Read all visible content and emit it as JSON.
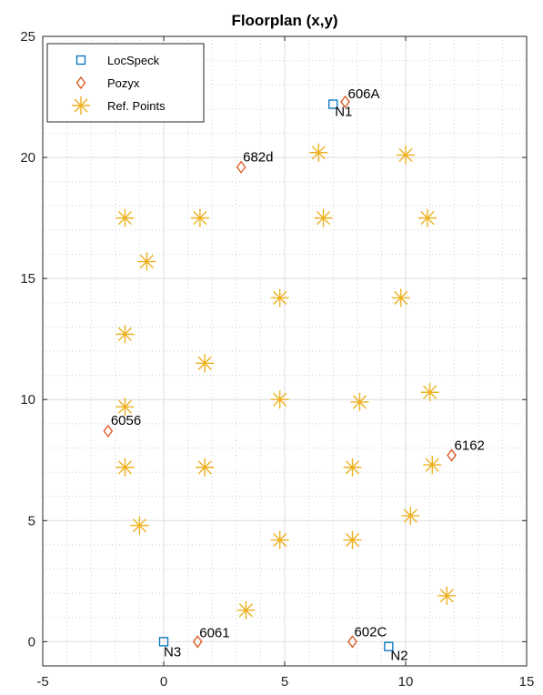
{
  "chart_data": {
    "type": "scatter",
    "title": "Floorplan (x,y)",
    "xlabel": "",
    "ylabel": "",
    "xlim": [
      -5,
      15
    ],
    "ylim": [
      -1,
      25
    ],
    "xticks": [
      -5,
      0,
      5,
      10,
      15
    ],
    "yticks": [
      0,
      5,
      10,
      15,
      20,
      25
    ],
    "grid": true,
    "minor_grid": true,
    "legend_position": "top-left",
    "series": [
      {
        "name": "LocSpeck",
        "marker": "square",
        "color": "#0072BD",
        "points": [
          {
            "x": 7.0,
            "y": 22.2,
            "label": "N1"
          },
          {
            "x": 9.3,
            "y": -0.2,
            "label": "N2"
          },
          {
            "x": 0.0,
            "y": 0.0,
            "label": "N3"
          }
        ]
      },
      {
        "name": "Pozyx",
        "marker": "diamond",
        "color": "#D95319",
        "points": [
          {
            "x": 7.5,
            "y": 22.3,
            "label": "606A"
          },
          {
            "x": 3.2,
            "y": 19.6,
            "label": "682d"
          },
          {
            "x": -2.3,
            "y": 8.7,
            "label": "6056"
          },
          {
            "x": 11.9,
            "y": 7.7,
            "label": "6162"
          },
          {
            "x": 1.4,
            "y": 0.0,
            "label": "6061"
          },
          {
            "x": 7.8,
            "y": 0.0,
            "label": "602C"
          }
        ]
      },
      {
        "name": "Ref. Points",
        "marker": "star",
        "color": "#EDB120",
        "points": [
          {
            "x": 6.4,
            "y": 20.2
          },
          {
            "x": 10.0,
            "y": 20.1
          },
          {
            "x": -1.6,
            "y": 17.5
          },
          {
            "x": 1.5,
            "y": 17.5
          },
          {
            "x": 6.6,
            "y": 17.5
          },
          {
            "x": 10.9,
            "y": 17.5
          },
          {
            "x": -0.7,
            "y": 15.7
          },
          {
            "x": 4.8,
            "y": 14.2
          },
          {
            "x": 9.8,
            "y": 14.2
          },
          {
            "x": -1.6,
            "y": 12.7
          },
          {
            "x": 1.7,
            "y": 11.5
          },
          {
            "x": 11.0,
            "y": 10.3
          },
          {
            "x": -1.6,
            "y": 9.7
          },
          {
            "x": 4.8,
            "y": 10.0
          },
          {
            "x": 8.1,
            "y": 9.9
          },
          {
            "x": -1.6,
            "y": 7.2
          },
          {
            "x": 1.7,
            "y": 7.2
          },
          {
            "x": 7.8,
            "y": 7.2
          },
          {
            "x": 11.1,
            "y": 7.3
          },
          {
            "x": -1.0,
            "y": 4.8
          },
          {
            "x": 10.2,
            "y": 5.2
          },
          {
            "x": 4.8,
            "y": 4.2
          },
          {
            "x": 7.8,
            "y": 4.2
          },
          {
            "x": 11.7,
            "y": 1.9
          },
          {
            "x": 3.4,
            "y": 1.3
          }
        ]
      }
    ]
  }
}
